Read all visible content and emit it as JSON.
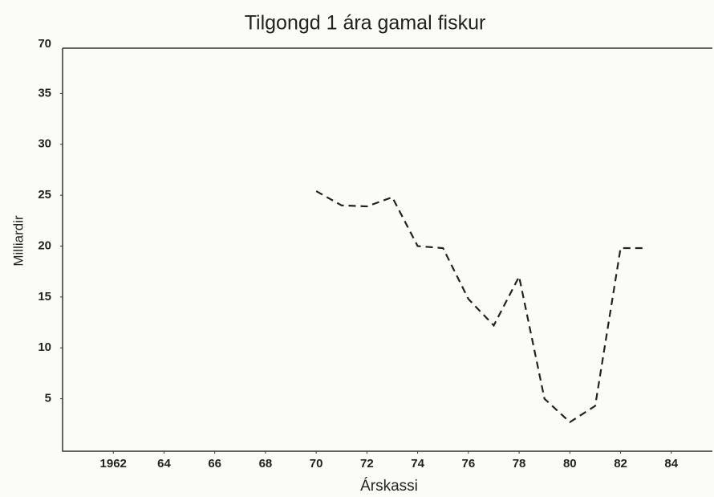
{
  "chart_data": {
    "type": "line",
    "title": "Tilgongd 1 ára gamal fiskur",
    "x_label": "Árskassi",
    "y_label": "Milliardir",
    "annotations": [
      "70"
    ],
    "x": [
      1970,
      1971,
      1972,
      1973,
      1974,
      1975,
      1976,
      1977,
      1978,
      1979,
      1980,
      1981,
      1982,
      1983
    ],
    "series": [
      {
        "name": "Tilgongd",
        "color": "#222222",
        "values": [
          25.4,
          24.0,
          23.9,
          24.8,
          20.0,
          19.8,
          14.8,
          12.2,
          17.0,
          5.0,
          2.7,
          4.3,
          19.8,
          19.8
        ]
      }
    ],
    "xlim": [
      1960,
      1986
    ],
    "xticks": [
      1962,
      {
        "value": 1964,
        "label": "64"
      },
      {
        "value": 1966,
        "label": "66"
      },
      {
        "value": 1968,
        "label": "68"
      },
      {
        "value": 1970,
        "label": "70"
      },
      {
        "value": 1972,
        "label": "72"
      },
      {
        "value": 1974,
        "label": "74"
      },
      {
        "value": 1976,
        "label": "76"
      },
      {
        "value": 1978,
        "label": "78"
      },
      {
        "value": 1980,
        "label": "80"
      },
      {
        "value": 1982,
        "label": "82"
      },
      {
        "value": 1984,
        "label": "84"
      }
    ],
    "ylim": [
      0,
      40
    ],
    "yticks": [
      5,
      10,
      15,
      20,
      25,
      30,
      35
    ],
    "line_style": "dashed"
  }
}
